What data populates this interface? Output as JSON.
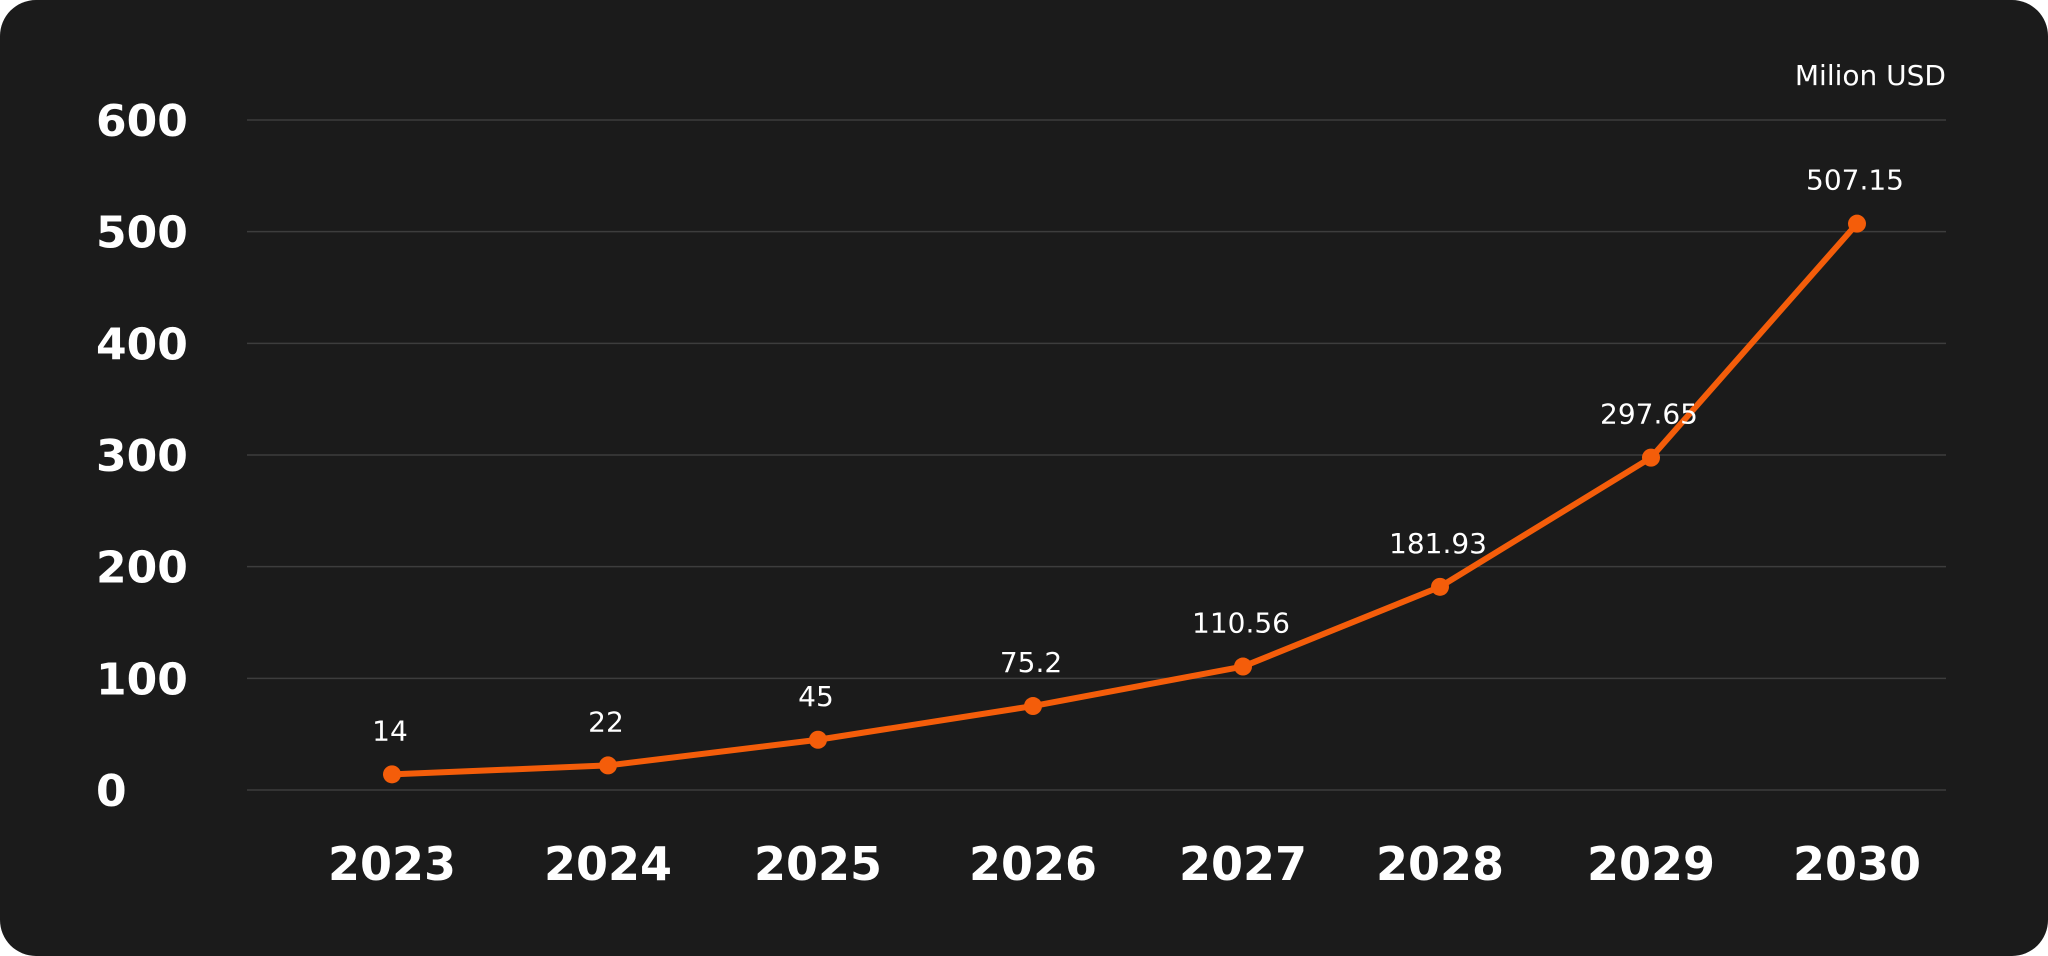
{
  "chart_data": {
    "type": "line",
    "title": "",
    "unit_label": "Milion USD",
    "categories": [
      "2023",
      "2024",
      "2025",
      "2026",
      "2027",
      "2028",
      "2029",
      "2030"
    ],
    "series": [
      {
        "values": [
          14,
          22,
          45,
          75.2,
          110.56,
          181.93,
          297.65,
          507.15
        ],
        "data_labels": [
          "14",
          "22",
          "45",
          "75.2",
          "110.56",
          "181.93",
          "297.65",
          "507.15"
        ]
      }
    ],
    "ylim": [
      0,
      600
    ],
    "yticks": [
      0,
      100,
      200,
      300,
      400,
      500,
      600
    ],
    "ytick_labels": [
      "0",
      "100",
      "200",
      "300",
      "400",
      "500",
      "600"
    ],
    "grid": true,
    "colors": {
      "background": "#1b1b1b",
      "line": "#f45d0a",
      "grid": "#3d3d3d",
      "text": "#ffffff"
    }
  }
}
